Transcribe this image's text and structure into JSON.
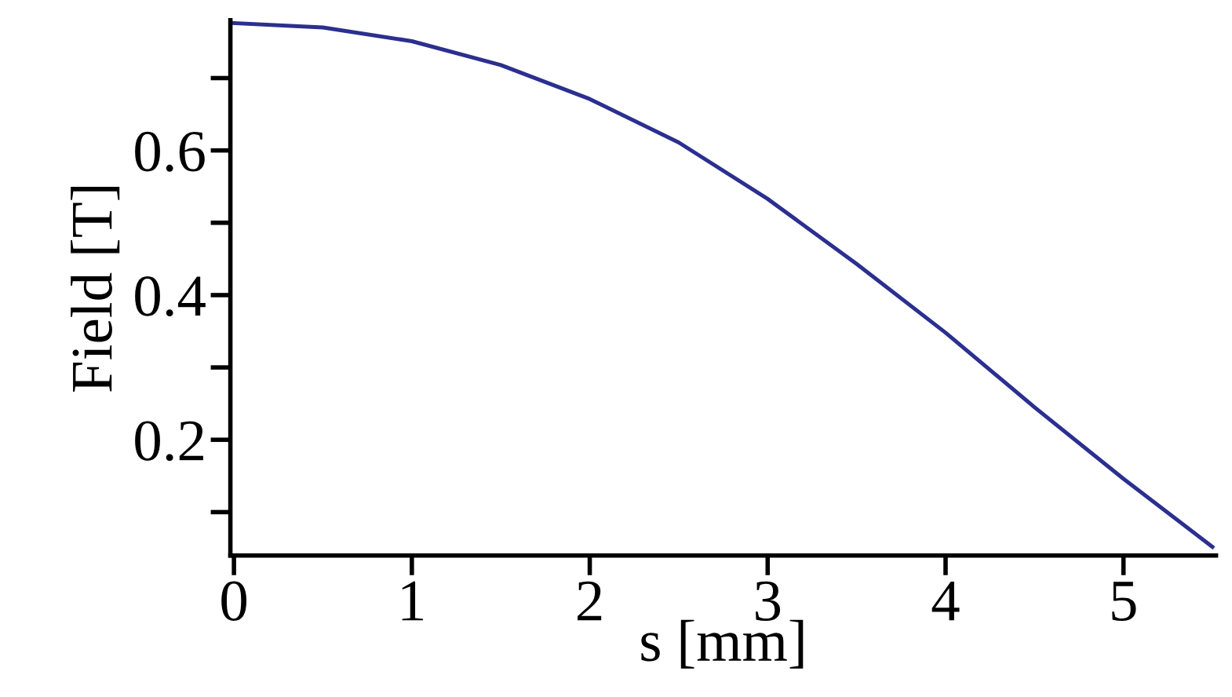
{
  "chart_data": {
    "type": "line",
    "xlabel": "s [mm]",
    "ylabel": "Field [T]",
    "x": [
      0,
      0.5,
      1,
      1.5,
      2,
      2.5,
      3,
      3.5,
      4,
      4.5,
      5,
      5.5
    ],
    "series": [
      {
        "color": "#2b2f8f",
        "values": [
          0.776,
          0.77,
          0.751,
          0.718,
          0.671,
          0.611,
          0.533,
          0.443,
          0.348,
          0.245,
          0.146,
          0.052
        ]
      }
    ],
    "xlim": [
      -0.02,
      5.52
    ],
    "ylim": [
      0.04,
      0.78
    ],
    "xticks": [
      0,
      1,
      2,
      3,
      4,
      5
    ],
    "yticks": [
      {
        "value": 0.1,
        "label": null
      },
      0.2,
      {
        "value": 0.3,
        "label": null
      },
      0.4,
      {
        "value": 0.5,
        "label": null
      },
      0.6,
      {
        "value": 0.7,
        "label": null
      }
    ],
    "grid": false,
    "legend": false,
    "marker": "none",
    "line_style": "solid"
  }
}
